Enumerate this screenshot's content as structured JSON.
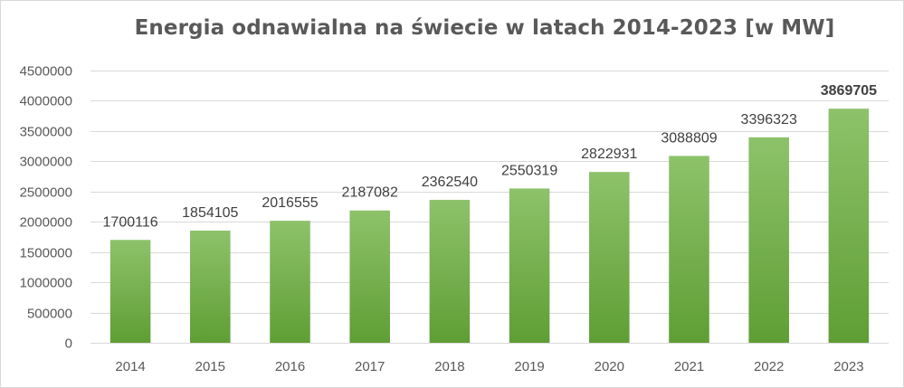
{
  "chart_data": {
    "type": "bar",
    "title": "Energia odnawialna na świecie w latach 2014-2023 [w MW]",
    "xlabel": "",
    "ylabel": "",
    "categories": [
      "2014",
      "2015",
      "2016",
      "2017",
      "2018",
      "2019",
      "2020",
      "2021",
      "2022",
      "2023"
    ],
    "values": [
      1700116,
      1854105,
      2016555,
      2187082,
      2362540,
      2550319,
      2822931,
      3088809,
      3396323,
      3869705
    ],
    "data_labels": [
      "1700116",
      "1854105",
      "2016555",
      "2187082",
      "2362540",
      "2550319",
      "2822931",
      "3088809",
      "3396323",
      "3869705"
    ],
    "bold_label_index": 9,
    "ylim": [
      0,
      4500000
    ],
    "y_ticks": [
      0,
      500000,
      1000000,
      1500000,
      2000000,
      2500000,
      3000000,
      3500000,
      4000000,
      4500000
    ],
    "y_tick_labels": [
      "0",
      "500000",
      "1000000",
      "1500000",
      "2000000",
      "2500000",
      "3000000",
      "3500000",
      "4000000",
      "4500000"
    ],
    "grid": true,
    "legend": "none",
    "colors": {
      "bar_top": "#8dc26a",
      "bar_bottom": "#5f9e34",
      "grid": "#d9d9d9",
      "text": "#595959"
    }
  }
}
